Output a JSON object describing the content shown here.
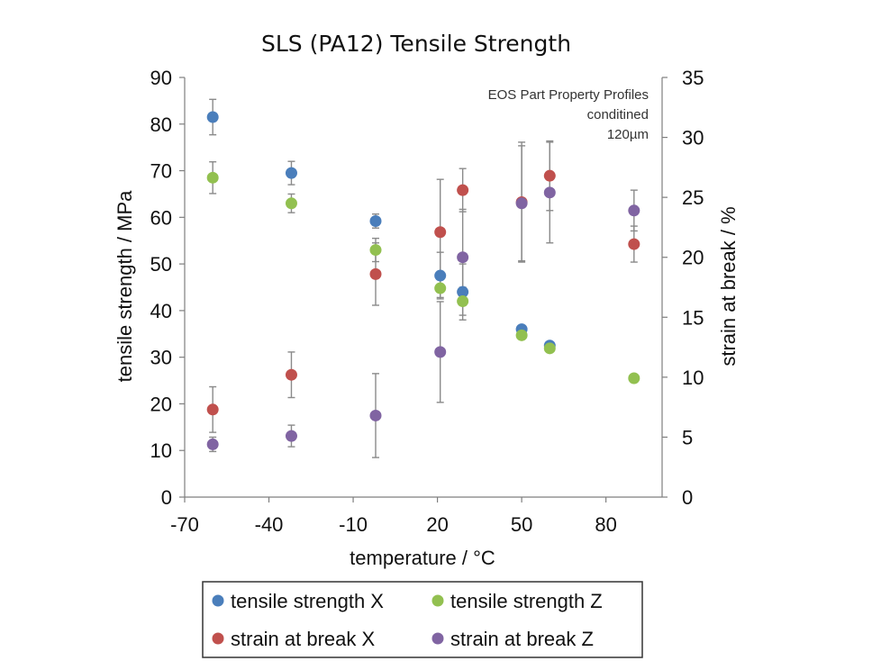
{
  "chart_data": {
    "type": "scatter",
    "title": "SLS (PA12) Tensile Strength",
    "xlabel": "temperature / °C",
    "ylabel": "tensile strength / MPa",
    "y2label": "strain at break / %",
    "xlim": [
      -70,
      100
    ],
    "ylim": [
      0,
      90
    ],
    "y2lim": [
      0,
      35
    ],
    "x_ticks": [
      -70,
      -40,
      -10,
      20,
      50,
      80
    ],
    "y_ticks": [
      0,
      10,
      20,
      30,
      40,
      50,
      60,
      70,
      80,
      90
    ],
    "y2_ticks": [
      0,
      5,
      10,
      15,
      20,
      25,
      30,
      35
    ],
    "annotation": [
      "EOS Part Property Profiles",
      "conditined",
      "120µm"
    ],
    "legend_position": "bottom",
    "series": [
      {
        "name": "tensile strength X",
        "axis": "left",
        "color": "#4a7ebb",
        "points": [
          {
            "x": -60,
            "y": 81.5,
            "err": 3.8
          },
          {
            "x": -32,
            "y": 69.5,
            "err": 2.5
          },
          {
            "x": -2,
            "y": 59.2,
            "err": 1.5
          },
          {
            "x": 21,
            "y": 47.5,
            "err": 5.0
          },
          {
            "x": 29,
            "y": 44.0,
            "err": 6.0
          },
          {
            "x": 50,
            "y": 36.0,
            "err": 0
          },
          {
            "x": 60,
            "y": 32.5,
            "err": 0
          }
        ]
      },
      {
        "name": "tensile strength Z",
        "axis": "left",
        "color": "#92c050",
        "points": [
          {
            "x": -60,
            "y": 68.5,
            "err": 3.4
          },
          {
            "x": -32,
            "y": 63.0,
            "err": 2.0
          },
          {
            "x": -2,
            "y": 53.0,
            "err": 2.5
          },
          {
            "x": 21,
            "y": 44.8,
            "err": 2.0
          },
          {
            "x": 29,
            "y": 42.0,
            "err": 3.0
          },
          {
            "x": 50,
            "y": 34.7,
            "err": 0
          },
          {
            "x": 60,
            "y": 31.9,
            "err": 0
          },
          {
            "x": 90,
            "y": 25.5,
            "err": 0
          }
        ]
      },
      {
        "name": "strain at break X",
        "axis": "right",
        "color": "#c0504d",
        "points": [
          {
            "x": -60,
            "y": 7.3,
            "err": 1.9
          },
          {
            "x": -32,
            "y": 10.2,
            "err": 1.9
          },
          {
            "x": -2,
            "y": 18.6,
            "err": 2.6
          },
          {
            "x": 21,
            "y": 22.1,
            "err": 4.4
          },
          {
            "x": 29,
            "y": 25.6,
            "err": 1.8
          },
          {
            "x": 50,
            "y": 24.6,
            "err": 5.0
          },
          {
            "x": 60,
            "y": 26.8,
            "err": 2.9
          },
          {
            "x": 90,
            "y": 21.1,
            "err": 1.5
          }
        ]
      },
      {
        "name": "strain at break Z",
        "axis": "right",
        "color": "#8064a2",
        "points": [
          {
            "x": -60,
            "y": 4.4,
            "err": 0.6
          },
          {
            "x": -32,
            "y": 5.1,
            "err": 0.9
          },
          {
            "x": -2,
            "y": 6.8,
            "err": 3.5
          },
          {
            "x": 21,
            "y": 12.1,
            "err": 4.2
          },
          {
            "x": 29,
            "y": 20.0,
            "err": 4.0
          },
          {
            "x": 50,
            "y": 24.5,
            "err": 4.8
          },
          {
            "x": 60,
            "y": 25.4,
            "err": 4.2
          },
          {
            "x": 90,
            "y": 23.9,
            "err": 1.7
          }
        ]
      }
    ]
  }
}
